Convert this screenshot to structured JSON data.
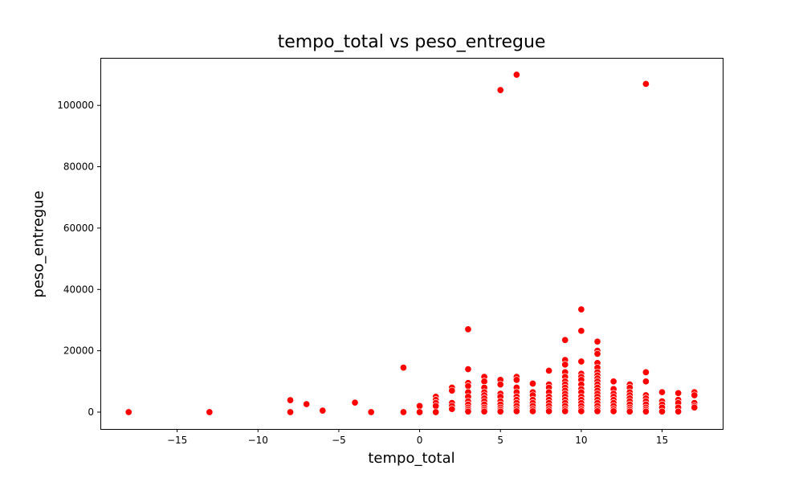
{
  "chart_data": {
    "type": "scatter",
    "title": "tempo_total vs peso_entregue",
    "xlabel": "tempo_total",
    "ylabel": "peso_entregue",
    "xlim": [
      -19.75,
      18.75
    ],
    "ylim": [
      -5500,
      115500
    ],
    "xticks": [
      -15,
      -10,
      -5,
      0,
      5,
      10,
      15
    ],
    "xtick_labels": [
      "−15",
      "−10",
      "−5",
      "0",
      "5",
      "10",
      "15"
    ],
    "yticks": [
      0,
      20000,
      40000,
      60000,
      80000,
      100000
    ],
    "ytick_labels": [
      "0",
      "20000",
      "40000",
      "60000",
      "80000",
      "100000"
    ],
    "grid": false,
    "legend": "none",
    "marker_color": "#ff0000",
    "series": [
      {
        "points": [
          [
            -18,
            0
          ],
          [
            -13,
            0
          ],
          [
            -8,
            3900
          ],
          [
            -8,
            0
          ],
          [
            -7,
            2600
          ],
          [
            -6,
            500
          ],
          [
            -4,
            3100
          ],
          [
            -3,
            0
          ],
          [
            -1,
            14500
          ],
          [
            -1,
            0
          ],
          [
            0,
            2000
          ],
          [
            0,
            0
          ],
          [
            1,
            5000
          ],
          [
            1,
            4000
          ],
          [
            1,
            3000
          ],
          [
            1,
            2000
          ],
          [
            1,
            0
          ],
          [
            2,
            8000
          ],
          [
            2,
            7000
          ],
          [
            2,
            3000
          ],
          [
            2,
            2000
          ],
          [
            2,
            1000
          ],
          [
            3,
            27000
          ],
          [
            3,
            14000
          ],
          [
            3,
            9500
          ],
          [
            3,
            8500
          ],
          [
            3,
            6500
          ],
          [
            3,
            5000
          ],
          [
            3,
            3500
          ],
          [
            3,
            2500
          ],
          [
            3,
            1500
          ],
          [
            3,
            800
          ],
          [
            3,
            200
          ],
          [
            4,
            11500
          ],
          [
            4,
            10000
          ],
          [
            4,
            8000
          ],
          [
            4,
            6500
          ],
          [
            4,
            5500
          ],
          [
            4,
            4500
          ],
          [
            4,
            3500
          ],
          [
            4,
            2500
          ],
          [
            4,
            1500
          ],
          [
            4,
            800
          ],
          [
            4,
            200
          ],
          [
            5,
            105000
          ],
          [
            5,
            10500
          ],
          [
            5,
            9000
          ],
          [
            5,
            6000
          ],
          [
            5,
            5000
          ],
          [
            5,
            3500
          ],
          [
            5,
            2500
          ],
          [
            5,
            1500
          ],
          [
            5,
            800
          ],
          [
            5,
            200
          ],
          [
            6,
            110000
          ],
          [
            6,
            11500
          ],
          [
            6,
            10500
          ],
          [
            6,
            8000
          ],
          [
            6,
            6500
          ],
          [
            6,
            5000
          ],
          [
            6,
            4000
          ],
          [
            6,
            3000
          ],
          [
            6,
            2000
          ],
          [
            6,
            1000
          ],
          [
            6,
            300
          ],
          [
            7,
            9300
          ],
          [
            7,
            6500
          ],
          [
            7,
            5500
          ],
          [
            7,
            4000
          ],
          [
            7,
            3000
          ],
          [
            7,
            2000
          ],
          [
            7,
            1000
          ],
          [
            7,
            300
          ],
          [
            8,
            13500
          ],
          [
            8,
            9000
          ],
          [
            8,
            8000
          ],
          [
            8,
            6500
          ],
          [
            8,
            5000
          ],
          [
            8,
            4000
          ],
          [
            8,
            3000
          ],
          [
            8,
            2000
          ],
          [
            8,
            1000
          ],
          [
            8,
            300
          ],
          [
            9,
            23500
          ],
          [
            9,
            17000
          ],
          [
            9,
            15500
          ],
          [
            9,
            13000
          ],
          [
            9,
            11500
          ],
          [
            9,
            10000
          ],
          [
            9,
            9000
          ],
          [
            9,
            8000
          ],
          [
            9,
            7000
          ],
          [
            9,
            6000
          ],
          [
            9,
            5000
          ],
          [
            9,
            4000
          ],
          [
            9,
            3000
          ],
          [
            9,
            2000
          ],
          [
            9,
            1000
          ],
          [
            9,
            300
          ],
          [
            10,
            33500
          ],
          [
            10,
            26500
          ],
          [
            10,
            16500
          ],
          [
            10,
            12500
          ],
          [
            10,
            11500
          ],
          [
            10,
            10500
          ],
          [
            10,
            9000
          ],
          [
            10,
            7500
          ],
          [
            10,
            6500
          ],
          [
            10,
            5000
          ],
          [
            10,
            4000
          ],
          [
            10,
            3000
          ],
          [
            10,
            2000
          ],
          [
            10,
            1000
          ],
          [
            10,
            300
          ],
          [
            11,
            23000
          ],
          [
            11,
            20000
          ],
          [
            11,
            19000
          ],
          [
            11,
            16000
          ],
          [
            11,
            14500
          ],
          [
            11,
            13000
          ],
          [
            11,
            12000
          ],
          [
            11,
            11000
          ],
          [
            11,
            10000
          ],
          [
            11,
            9000
          ],
          [
            11,
            8000
          ],
          [
            11,
            7000
          ],
          [
            11,
            6000
          ],
          [
            11,
            5000
          ],
          [
            11,
            4000
          ],
          [
            11,
            3000
          ],
          [
            11,
            2000
          ],
          [
            11,
            1000
          ],
          [
            11,
            300
          ],
          [
            12,
            10000
          ],
          [
            12,
            7500
          ],
          [
            12,
            6000
          ],
          [
            12,
            5000
          ],
          [
            12,
            4000
          ],
          [
            12,
            3000
          ],
          [
            12,
            2000
          ],
          [
            12,
            1000
          ],
          [
            12,
            300
          ],
          [
            13,
            9000
          ],
          [
            13,
            8000
          ],
          [
            13,
            6500
          ],
          [
            13,
            5500
          ],
          [
            13,
            4500
          ],
          [
            13,
            3500
          ],
          [
            13,
            2500
          ],
          [
            13,
            1500
          ],
          [
            13,
            800
          ],
          [
            13,
            200
          ],
          [
            14,
            107000
          ],
          [
            14,
            13000
          ],
          [
            14,
            10000
          ],
          [
            14,
            5500
          ],
          [
            14,
            4500
          ],
          [
            14,
            3500
          ],
          [
            14,
            2500
          ],
          [
            14,
            1500
          ],
          [
            14,
            800
          ],
          [
            14,
            200
          ],
          [
            15,
            6500
          ],
          [
            15,
            3500
          ],
          [
            15,
            2500
          ],
          [
            15,
            1500
          ],
          [
            15,
            200
          ],
          [
            16,
            6200
          ],
          [
            16,
            4000
          ],
          [
            16,
            3000
          ],
          [
            16,
            1500
          ],
          [
            16,
            200
          ],
          [
            17,
            6500
          ],
          [
            17,
            5500
          ],
          [
            17,
            3000
          ],
          [
            17,
            2000
          ],
          [
            17,
            1500
          ]
        ]
      }
    ]
  }
}
